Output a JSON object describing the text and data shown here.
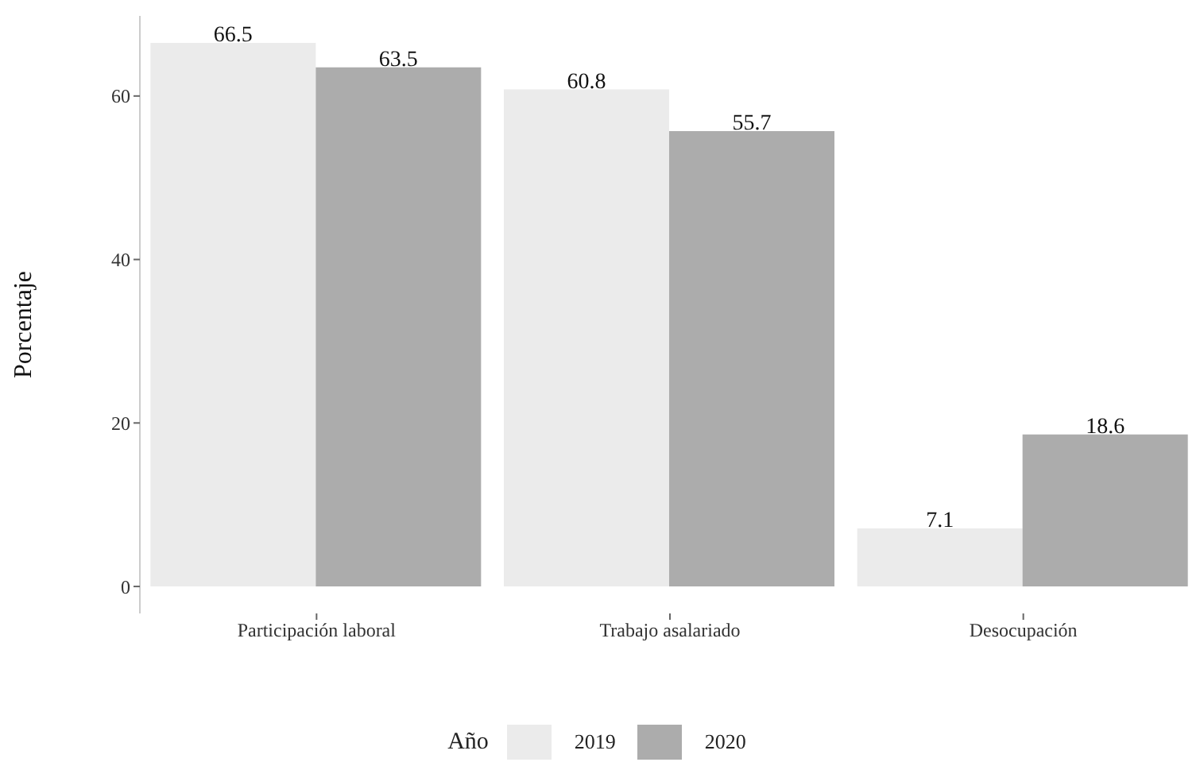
{
  "chart_data": {
    "type": "bar",
    "ylabel": "Porcentaje",
    "legend_title": "Año",
    "categories": [
      "Participación laboral",
      "Trabajo asalariado",
      "Desocupación"
    ],
    "series": [
      {
        "name": "2019",
        "color": "#ebebeb",
        "values": [
          66.5,
          60.8,
          7.1
        ]
      },
      {
        "name": "2020",
        "color": "#acacac",
        "values": [
          63.5,
          55.7,
          18.6
        ]
      }
    ],
    "ylim": [
      -3.3,
      69.8
    ],
    "yticks": [
      0,
      20,
      40,
      60
    ],
    "grid": false,
    "legend": "bottom",
    "data_labels": true
  }
}
